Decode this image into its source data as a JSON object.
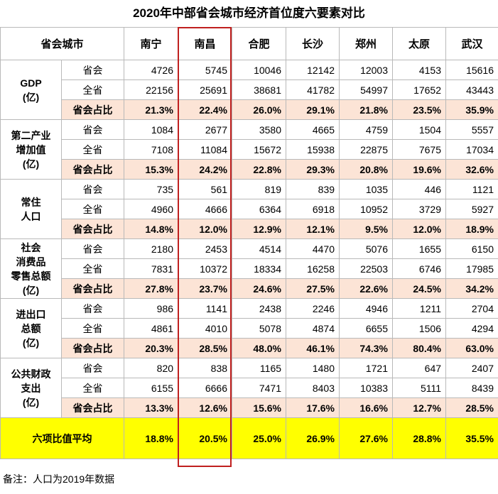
{
  "title": "2020年中部省会城市经济首位度六要素对比",
  "header": {
    "corner": "省会城市",
    "cities": [
      "南宁",
      "南昌",
      "合肥",
      "长沙",
      "郑州",
      "太原",
      "武汉"
    ]
  },
  "sub_labels": {
    "capital": "省会",
    "province": "全省",
    "ratio": "省会占比"
  },
  "groups": [
    {
      "label": "GDP\n(亿)",
      "capital": [
        "4726",
        "5745",
        "10046",
        "12142",
        "12003",
        "4153",
        "15616"
      ],
      "province": [
        "22156",
        "25691",
        "38681",
        "41782",
        "54997",
        "17652",
        "43443"
      ],
      "ratio": [
        "21.3%",
        "22.4%",
        "26.0%",
        "29.1%",
        "21.8%",
        "23.5%",
        "35.9%"
      ]
    },
    {
      "label": "第二产业\n增加值\n(亿)",
      "capital": [
        "1084",
        "2677",
        "3580",
        "4665",
        "4759",
        "1504",
        "5557"
      ],
      "province": [
        "7108",
        "11084",
        "15672",
        "15938",
        "22875",
        "7675",
        "17034"
      ],
      "ratio": [
        "15.3%",
        "24.2%",
        "22.8%",
        "29.3%",
        "20.8%",
        "19.6%",
        "32.6%"
      ]
    },
    {
      "label": "常住\n人口",
      "capital": [
        "735",
        "561",
        "819",
        "839",
        "1035",
        "446",
        "1121"
      ],
      "province": [
        "4960",
        "4666",
        "6364",
        "6918",
        "10952",
        "3729",
        "5927"
      ],
      "ratio": [
        "14.8%",
        "12.0%",
        "12.9%",
        "12.1%",
        "9.5%",
        "12.0%",
        "18.9%"
      ]
    },
    {
      "label": "社会\n消费品\n零售总额\n(亿)",
      "capital": [
        "2180",
        "2453",
        "4514",
        "4470",
        "5076",
        "1655",
        "6150"
      ],
      "province": [
        "7831",
        "10372",
        "18334",
        "16258",
        "22503",
        "6746",
        "17985"
      ],
      "ratio": [
        "27.8%",
        "23.7%",
        "24.6%",
        "27.5%",
        "22.6%",
        "24.5%",
        "34.2%"
      ]
    },
    {
      "label": "进出口\n总额\n(亿)",
      "capital": [
        "986",
        "1141",
        "2438",
        "2246",
        "4946",
        "1211",
        "2704"
      ],
      "province": [
        "4861",
        "4010",
        "5078",
        "4874",
        "6655",
        "1506",
        "4294"
      ],
      "ratio": [
        "20.3%",
        "28.5%",
        "48.0%",
        "46.1%",
        "74.3%",
        "80.4%",
        "63.0%"
      ]
    },
    {
      "label": "公共财政\n支出\n(亿)",
      "capital": [
        "820",
        "838",
        "1165",
        "1480",
        "1721",
        "647",
        "2407"
      ],
      "province": [
        "6155",
        "6666",
        "7471",
        "8403",
        "10383",
        "5111",
        "8439"
      ],
      "ratio": [
        "13.3%",
        "12.6%",
        "15.6%",
        "17.6%",
        "16.6%",
        "12.7%",
        "28.5%"
      ]
    }
  ],
  "average": {
    "label": "六项比值平均",
    "values": [
      "18.8%",
      "20.5%",
      "25.0%",
      "26.9%",
      "27.6%",
      "28.8%",
      "35.5%"
    ]
  },
  "note": "备注：人口为2019年数据",
  "colors": {
    "ratio_row": "#fce4d6",
    "average_row": "#ffff00",
    "highlight_border": "#c0201f"
  }
}
